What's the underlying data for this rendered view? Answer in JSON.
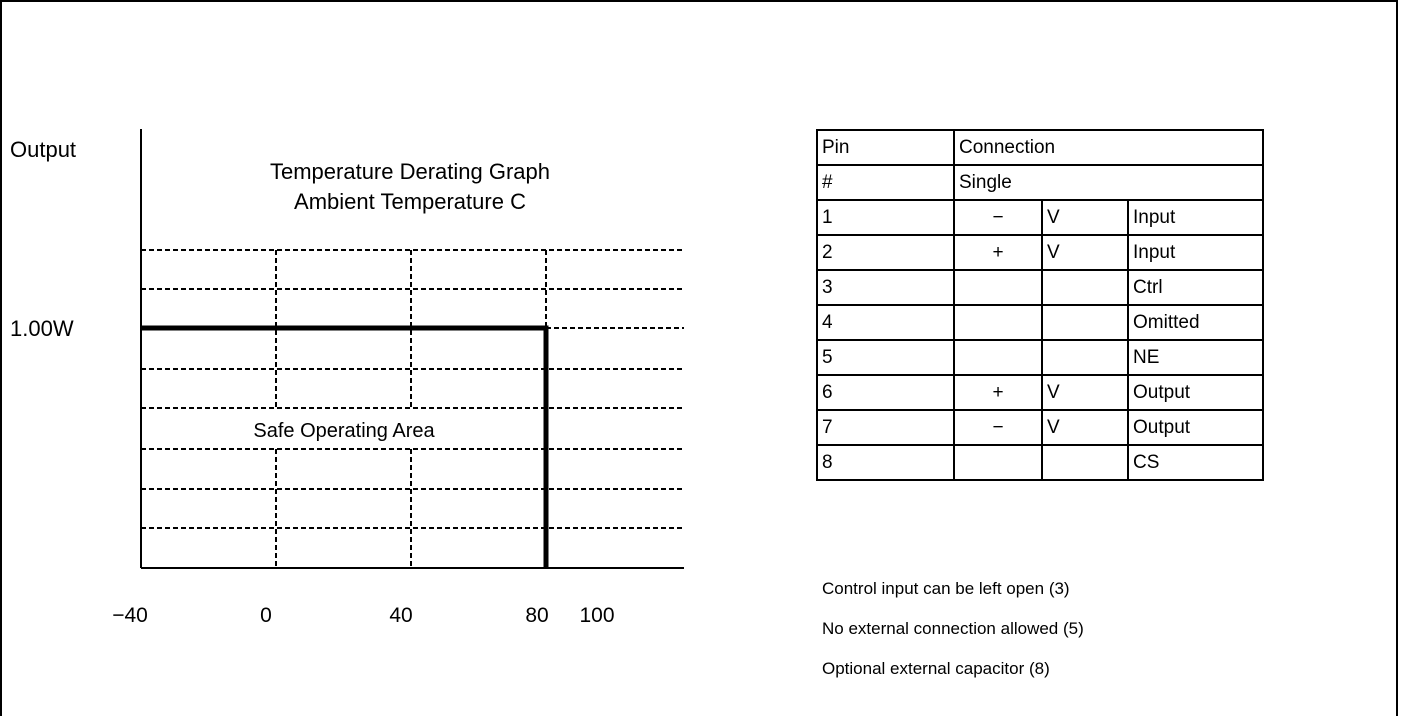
{
  "graph": {
    "title_line1": "Temperature Derating Graph",
    "title_line2": "Ambient Temperature C",
    "y_label": "Output",
    "y_tick_label": "1.00W",
    "area_label": "Safe Operating Area",
    "x_ticks": [
      {
        "value": -40,
        "label": "−40"
      },
      {
        "value": 0,
        "label": "0"
      },
      {
        "value": 40,
        "label": "40"
      },
      {
        "value": 80,
        "label": "80"
      },
      {
        "value": 100,
        "label": "100"
      }
    ],
    "derating_curve": {
      "max_output_w": 1.0,
      "flat_until_c": 80
    }
  },
  "pin_table": {
    "header1": [
      "Pin",
      "Connection"
    ],
    "header2": [
      "#",
      "Single"
    ],
    "rows": [
      {
        "pin": "1",
        "sign": "−",
        "v": "V",
        "func": "Input"
      },
      {
        "pin": "2",
        "sign": "+",
        "v": "V",
        "func": "Input"
      },
      {
        "pin": "3",
        "sign": "",
        "v": "",
        "func": "Ctrl"
      },
      {
        "pin": "4",
        "sign": "",
        "v": "",
        "func": "Omitted"
      },
      {
        "pin": "5",
        "sign": "",
        "v": "",
        "func": "NE"
      },
      {
        "pin": "6",
        "sign": "+",
        "v": "V",
        "func": "Output"
      },
      {
        "pin": "7",
        "sign": "−",
        "v": "V",
        "func": "Output"
      },
      {
        "pin": "8",
        "sign": "",
        "v": "",
        "func": "CS"
      }
    ]
  },
  "notes": [
    "Control input can be left open (3)",
    "No external connection allowed (5)",
    "Optional external capacitor (8)"
  ]
}
